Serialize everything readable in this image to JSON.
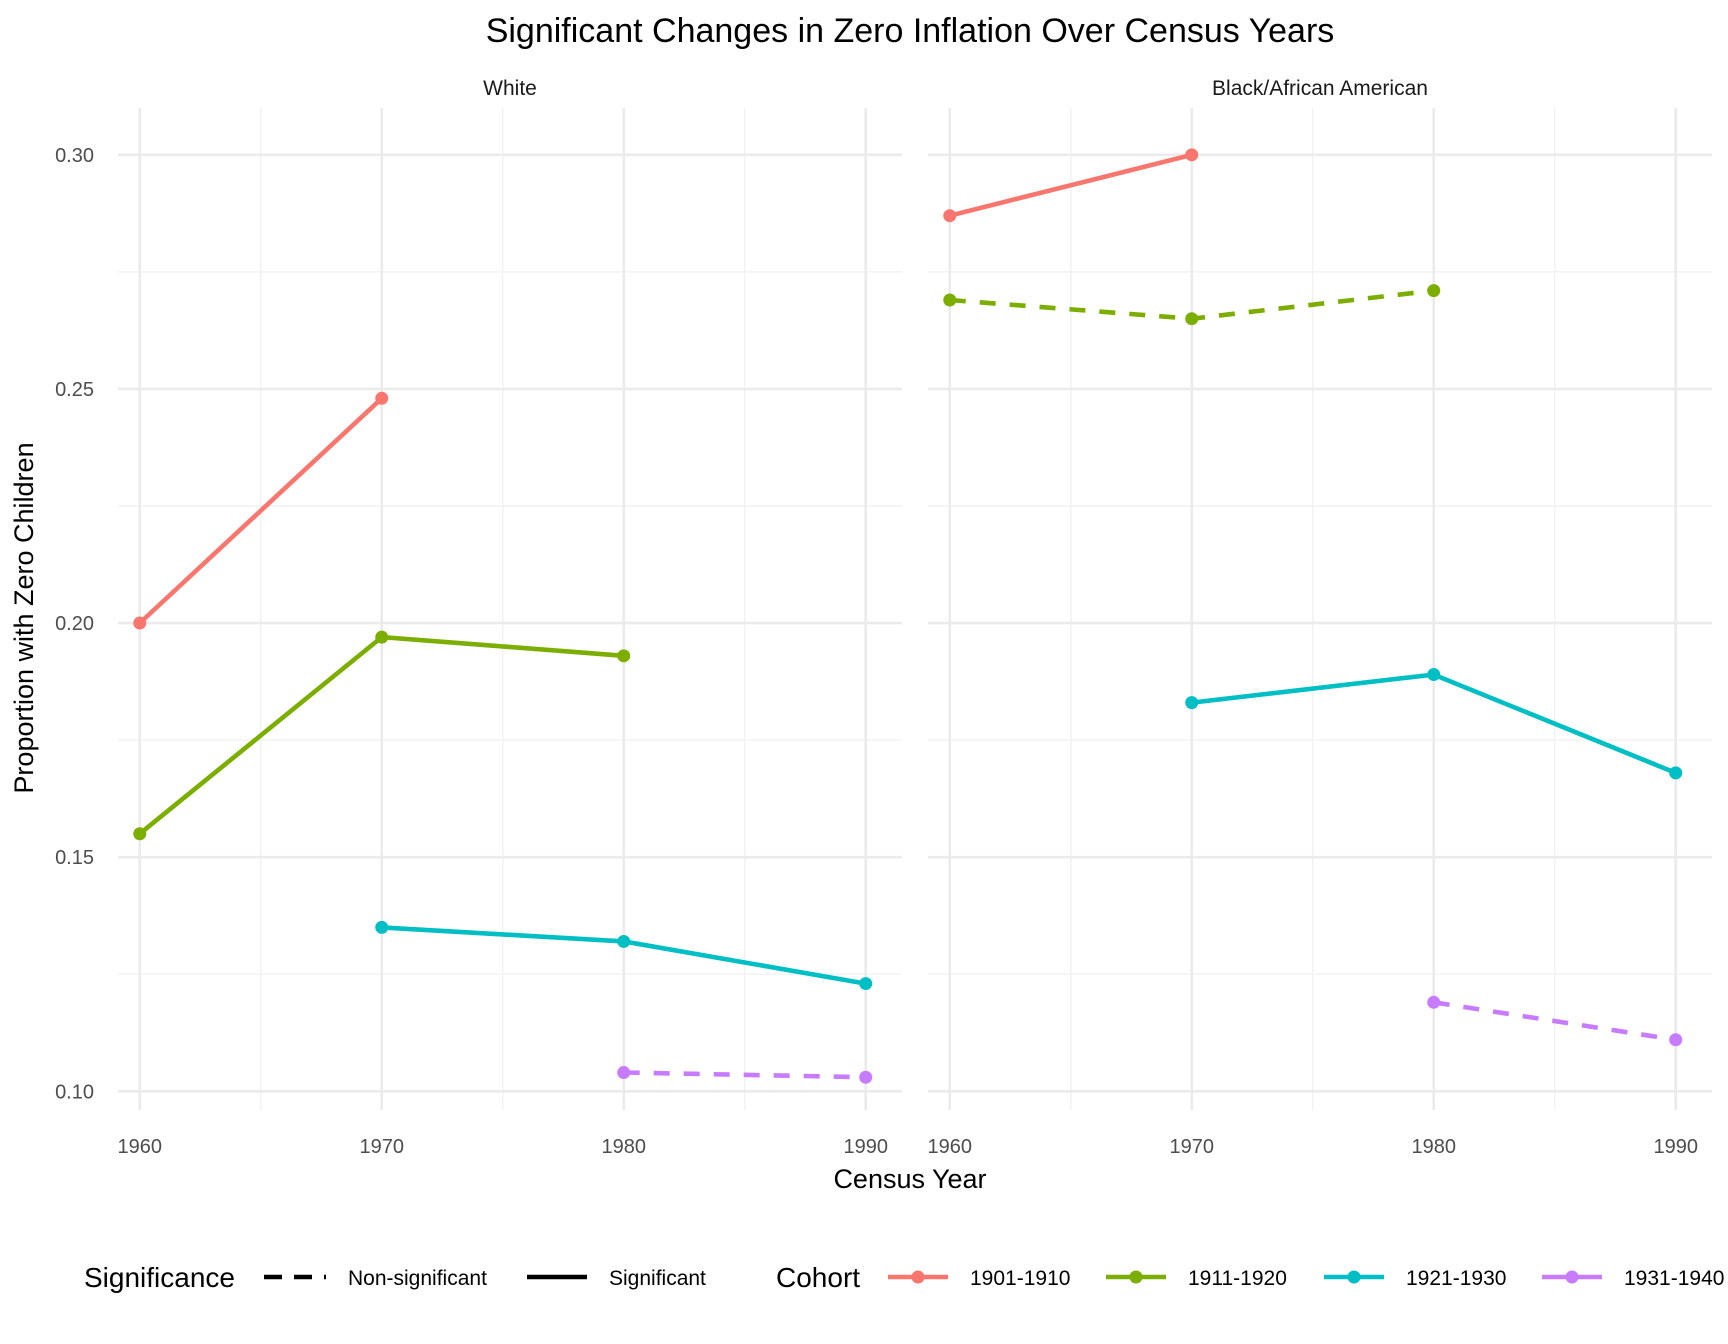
{
  "chart_data": {
    "type": "line",
    "title": "Significant Changes in Zero Inflation Over Census Years",
    "xlabel": "Census Year",
    "ylabel": "Proportion with Zero Children",
    "x_ticks": [
      1960,
      1970,
      1980,
      1990
    ],
    "x_tick_labels": [
      "1960",
      "1970",
      "1980",
      "1990"
    ],
    "y_ticks": [
      0.1,
      0.15,
      0.2,
      0.25,
      0.3
    ],
    "y_tick_labels": [
      "0.10",
      "0.15",
      "0.20",
      "0.25",
      "0.30"
    ],
    "xlim": [
      1959.1,
      1991.5
    ],
    "ylim": [
      0.096,
      0.31
    ],
    "grid": true,
    "legend": {
      "position": "bottom",
      "significance_title": "Significance",
      "significance_items": [
        {
          "label": "Non-significant",
          "dash": "dashed"
        },
        {
          "label": "Significant",
          "dash": "solid"
        }
      ],
      "cohort_title": "Cohort",
      "cohort_items": [
        {
          "label": "1901-1910",
          "color": "#F8766D"
        },
        {
          "label": "1911-1920",
          "color": "#7CAE00"
        },
        {
          "label": "1921-1930",
          "color": "#00BFC4"
        },
        {
          "label": "1931-1940",
          "color": "#C77CFF"
        }
      ]
    },
    "facets": [
      {
        "name": "White",
        "series": [
          {
            "cohort": "1901-1910",
            "color": "#F8766D",
            "significance": "Significant",
            "x": [
              1960,
              1970
            ],
            "y": [
              0.2,
              0.248
            ]
          },
          {
            "cohort": "1911-1920",
            "color": "#7CAE00",
            "significance": "Significant",
            "x": [
              1960,
              1970,
              1980
            ],
            "y": [
              0.155,
              0.197,
              0.193
            ]
          },
          {
            "cohort": "1921-1930",
            "color": "#00BFC4",
            "significance": "Significant",
            "x": [
              1970,
              1980,
              1990
            ],
            "y": [
              0.135,
              0.132,
              0.123
            ]
          },
          {
            "cohort": "1931-1940",
            "color": "#C77CFF",
            "significance": "Non-significant",
            "x": [
              1980,
              1990
            ],
            "y": [
              0.104,
              0.103
            ]
          }
        ]
      },
      {
        "name": "Black/African American",
        "series": [
          {
            "cohort": "1901-1910",
            "color": "#F8766D",
            "significance": "Significant",
            "x": [
              1960,
              1970
            ],
            "y": [
              0.287,
              0.3
            ]
          },
          {
            "cohort": "1911-1920",
            "color": "#7CAE00",
            "significance": "Non-significant",
            "x": [
              1960,
              1970,
              1980
            ],
            "y": [
              0.269,
              0.265,
              0.271
            ]
          },
          {
            "cohort": "1921-1930",
            "color": "#00BFC4",
            "significance": "Significant",
            "x": [
              1970,
              1980,
              1990
            ],
            "y": [
              0.183,
              0.189,
              0.168
            ]
          },
          {
            "cohort": "1931-1940",
            "color": "#C77CFF",
            "significance": "Non-significant",
            "x": [
              1980,
              1990
            ],
            "y": [
              0.119,
              0.111
            ]
          }
        ]
      }
    ]
  }
}
